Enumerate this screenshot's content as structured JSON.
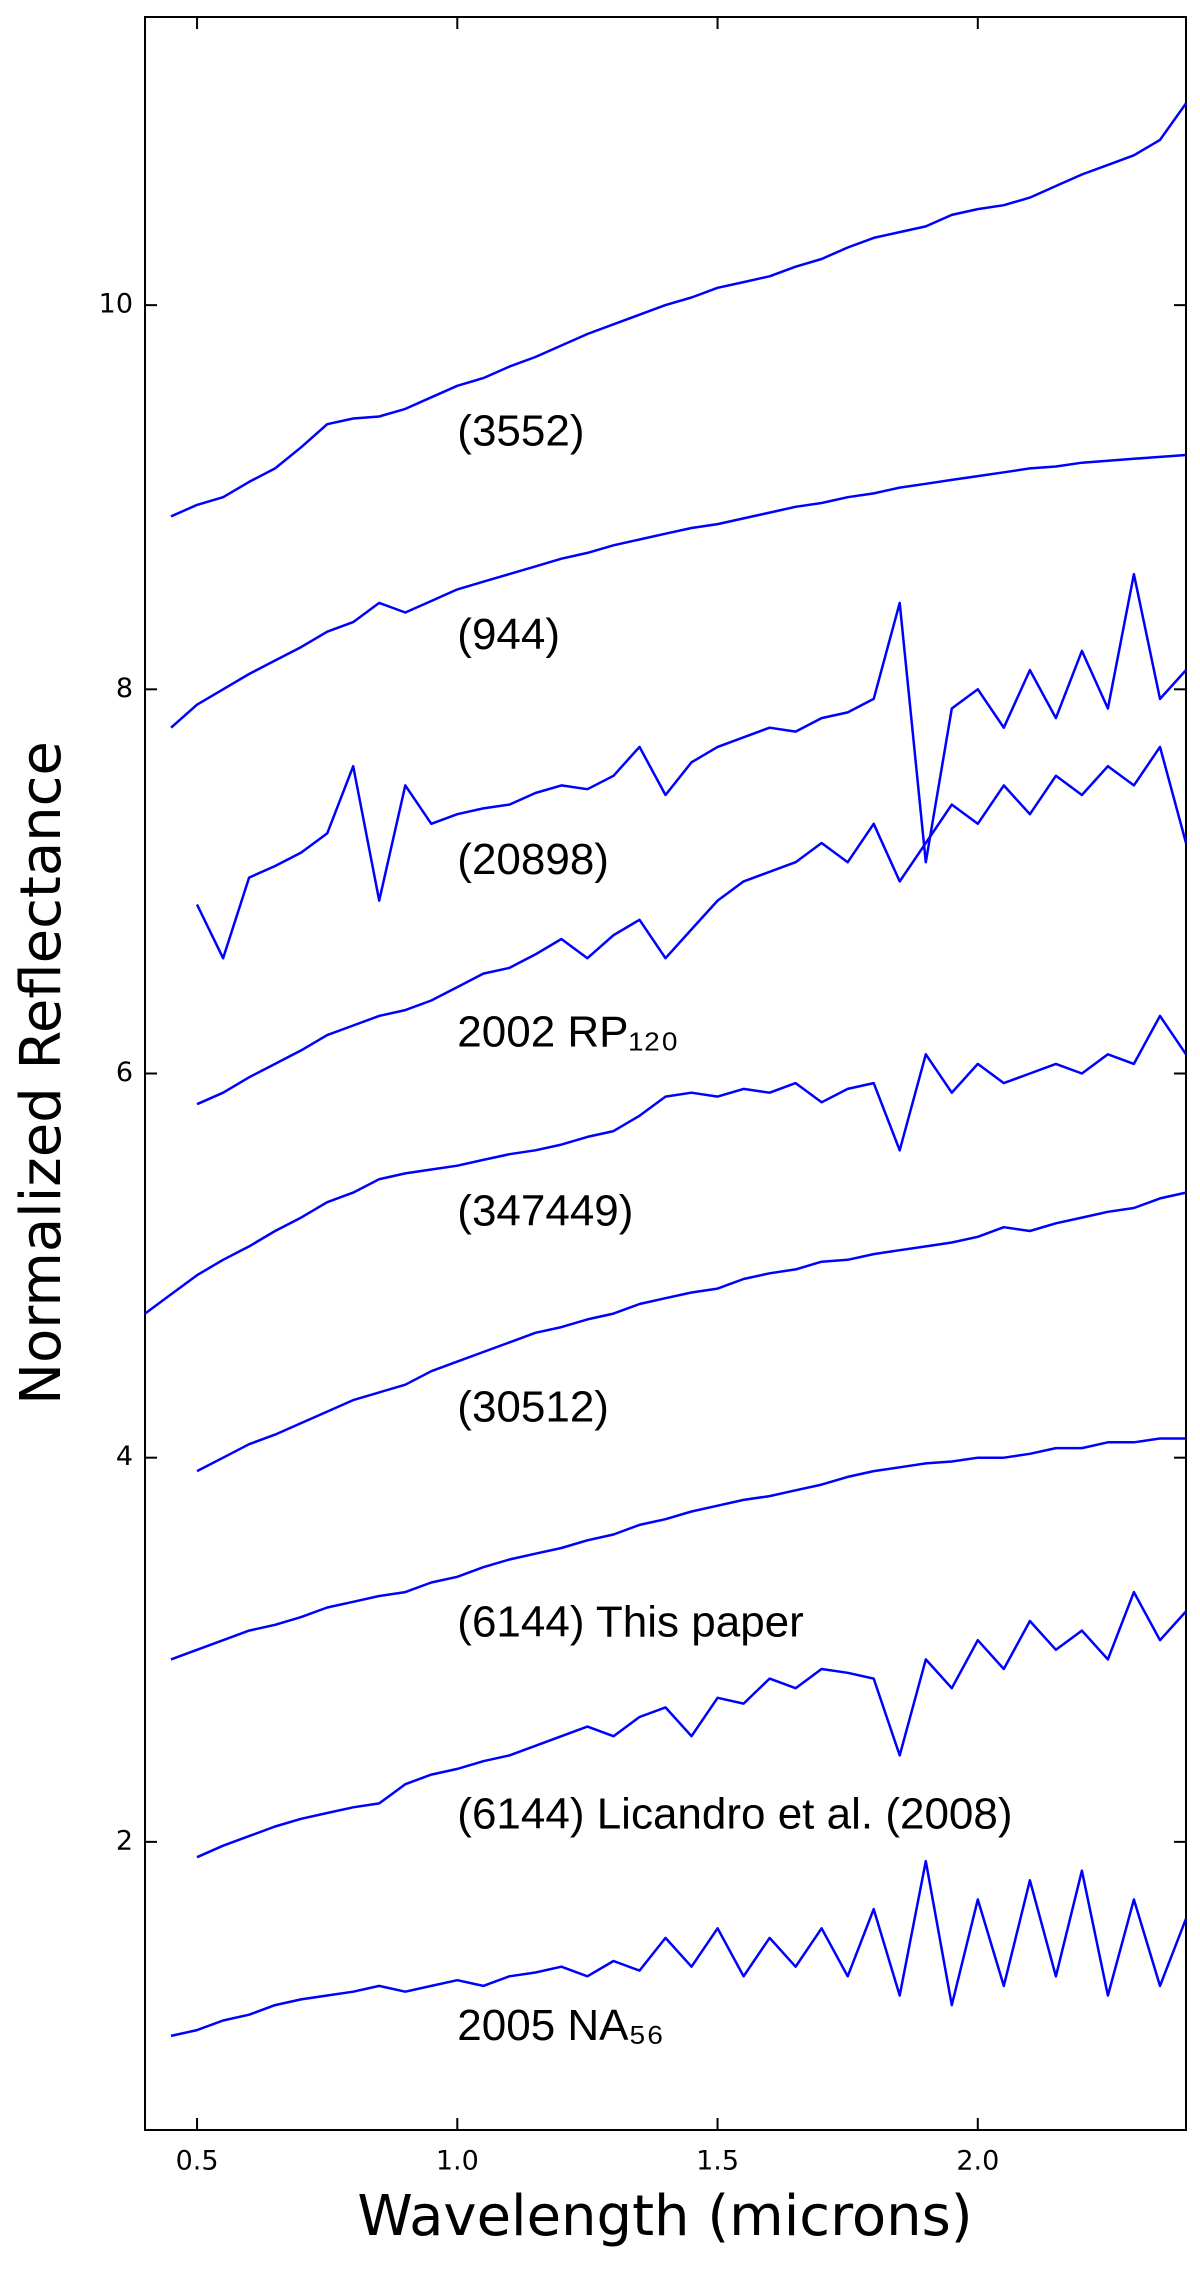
{
  "chart_data": {
    "type": "line",
    "xlabel": "Wavelength (microns)",
    "ylabel": "Normalized Reflectance",
    "xlim": [
      0.4,
      2.4
    ],
    "ylim": [
      0.5,
      11.5
    ],
    "xticks": [
      0.5,
      {
        "value": 1,
        "label": "1.0"
      },
      1.5,
      {
        "value": 2,
        "label": "2.0"
      }
    ],
    "yticks": [
      2,
      4,
      6,
      8,
      10
    ],
    "x": [
      0.4,
      0.45,
      0.5,
      0.55,
      0.6,
      0.65,
      0.7,
      0.75,
      0.8,
      0.85,
      0.9,
      0.95,
      1.0,
      1.05,
      1.1,
      1.15,
      1.2,
      1.25,
      1.3,
      1.35,
      1.4,
      1.45,
      1.5,
      1.55,
      1.6,
      1.65,
      1.7,
      1.75,
      1.8,
      1.85,
      1.9,
      1.95,
      2.0,
      2.05,
      2.1,
      2.15,
      2.2,
      2.25,
      2.3,
      2.35,
      2.4
    ],
    "series": [
      {
        "name": "(3552)",
        "color": "#0000ff",
        "values": [
          null,
          8.9,
          8.96,
          9.0,
          9.08,
          9.15,
          9.26,
          9.38,
          9.41,
          9.42,
          9.46,
          9.52,
          9.58,
          9.62,
          9.68,
          9.73,
          9.79,
          9.85,
          9.9,
          9.95,
          10.0,
          10.04,
          10.09,
          10.12,
          10.15,
          10.2,
          10.24,
          10.3,
          10.35,
          10.38,
          10.41,
          10.47,
          10.5,
          10.52,
          10.56,
          10.62,
          10.68,
          10.73,
          10.78,
          10.86,
          11.05
        ]
      },
      {
        "name": "(944)",
        "color": "#0000ff",
        "values": [
          null,
          7.8,
          7.92,
          8.0,
          8.08,
          8.15,
          8.22,
          8.3,
          8.35,
          8.45,
          8.4,
          8.46,
          8.52,
          8.56,
          8.6,
          8.64,
          8.68,
          8.71,
          8.75,
          8.78,
          8.81,
          8.84,
          8.86,
          8.89,
          8.92,
          8.95,
          8.97,
          9.0,
          9.02,
          9.05,
          9.07,
          9.09,
          9.11,
          9.13,
          9.15,
          9.16,
          9.18,
          9.19,
          9.2,
          9.21,
          9.22
        ]
      },
      {
        "name": "(20898)",
        "color": "#0000ff",
        "values": [
          null,
          null,
          6.88,
          6.6,
          7.02,
          7.08,
          7.15,
          7.25,
          7.6,
          6.9,
          7.5,
          7.3,
          7.35,
          7.38,
          7.4,
          7.46,
          7.5,
          7.48,
          7.55,
          7.7,
          7.45,
          7.62,
          7.7,
          7.75,
          7.8,
          7.78,
          7.85,
          7.88,
          7.95,
          8.45,
          7.1,
          7.9,
          8.0,
          7.8,
          8.1,
          7.85,
          8.2,
          7.9,
          8.6,
          7.95,
          8.1
        ]
      },
      {
        "name": "2002 RP₁₂₀",
        "color": "#0000ff",
        "values": [
          null,
          null,
          5.84,
          5.9,
          5.98,
          6.05,
          6.12,
          6.2,
          6.25,
          6.3,
          6.33,
          6.38,
          6.45,
          6.52,
          6.55,
          6.62,
          6.7,
          6.6,
          6.72,
          6.8,
          6.6,
          6.75,
          6.9,
          7.0,
          7.05,
          7.1,
          7.2,
          7.1,
          7.3,
          7.0,
          7.2,
          7.4,
          7.3,
          7.5,
          7.35,
          7.55,
          7.45,
          7.6,
          7.5,
          7.7,
          7.2
        ]
      },
      {
        "name": "(347449)",
        "color": "#0000ff",
        "values": [
          4.75,
          4.85,
          4.95,
          5.03,
          5.1,
          5.18,
          5.25,
          5.33,
          5.38,
          5.45,
          5.48,
          5.5,
          5.52,
          5.55,
          5.58,
          5.6,
          5.63,
          5.67,
          5.7,
          5.78,
          5.88,
          5.9,
          5.88,
          5.92,
          5.9,
          5.95,
          5.85,
          5.92,
          5.95,
          5.6,
          6.1,
          5.9,
          6.05,
          5.95,
          6.0,
          6.05,
          6.0,
          6.1,
          6.05,
          6.3,
          6.1
        ]
      },
      {
        "name": "(30512)",
        "color": "#0000ff",
        "values": [
          null,
          null,
          3.93,
          4.0,
          4.07,
          4.12,
          4.18,
          4.24,
          4.3,
          4.34,
          4.38,
          4.45,
          4.5,
          4.55,
          4.6,
          4.65,
          4.68,
          4.72,
          4.75,
          4.8,
          4.83,
          4.86,
          4.88,
          4.93,
          4.96,
          4.98,
          5.02,
          5.03,
          5.06,
          5.08,
          5.1,
          5.12,
          5.15,
          5.2,
          5.18,
          5.22,
          5.25,
          5.28,
          5.3,
          5.35,
          5.38
        ]
      },
      {
        "name": "(6144) This paper",
        "color": "#0000ff",
        "values": [
          null,
          2.95,
          3.0,
          3.05,
          3.1,
          3.13,
          3.17,
          3.22,
          3.25,
          3.28,
          3.3,
          3.35,
          3.38,
          3.43,
          3.47,
          3.5,
          3.53,
          3.57,
          3.6,
          3.65,
          3.68,
          3.72,
          3.75,
          3.78,
          3.8,
          3.83,
          3.86,
          3.9,
          3.93,
          3.95,
          3.97,
          3.98,
          4.0,
          4.0,
          4.02,
          4.05,
          4.05,
          4.08,
          4.08,
          4.1,
          4.1
        ]
      },
      {
        "name": "(6144) Licandro et al. (2008)",
        "color": "#0000ff",
        "values": [
          null,
          null,
          1.92,
          1.98,
          2.03,
          2.08,
          2.12,
          2.15,
          2.18,
          2.2,
          2.3,
          2.35,
          2.38,
          2.42,
          2.45,
          2.5,
          2.55,
          2.6,
          2.55,
          2.65,
          2.7,
          2.55,
          2.75,
          2.72,
          2.85,
          2.8,
          2.9,
          2.88,
          2.85,
          2.45,
          2.95,
          2.8,
          3.05,
          2.9,
          3.15,
          3.0,
          3.1,
          2.95,
          3.3,
          3.05,
          3.2
        ]
      },
      {
        "name": "2005 NA₅₆",
        "color": "#0000ff",
        "values": [
          null,
          0.99,
          1.02,
          1.07,
          1.1,
          1.15,
          1.18,
          1.2,
          1.22,
          1.25,
          1.22,
          1.25,
          1.28,
          1.25,
          1.3,
          1.32,
          1.35,
          1.3,
          1.38,
          1.33,
          1.5,
          1.35,
          1.55,
          1.3,
          1.5,
          1.35,
          1.55,
          1.3,
          1.65,
          1.2,
          1.9,
          1.15,
          1.7,
          1.25,
          1.8,
          1.3,
          1.85,
          1.2,
          1.7,
          1.25,
          1.6
        ]
      }
    ]
  }
}
